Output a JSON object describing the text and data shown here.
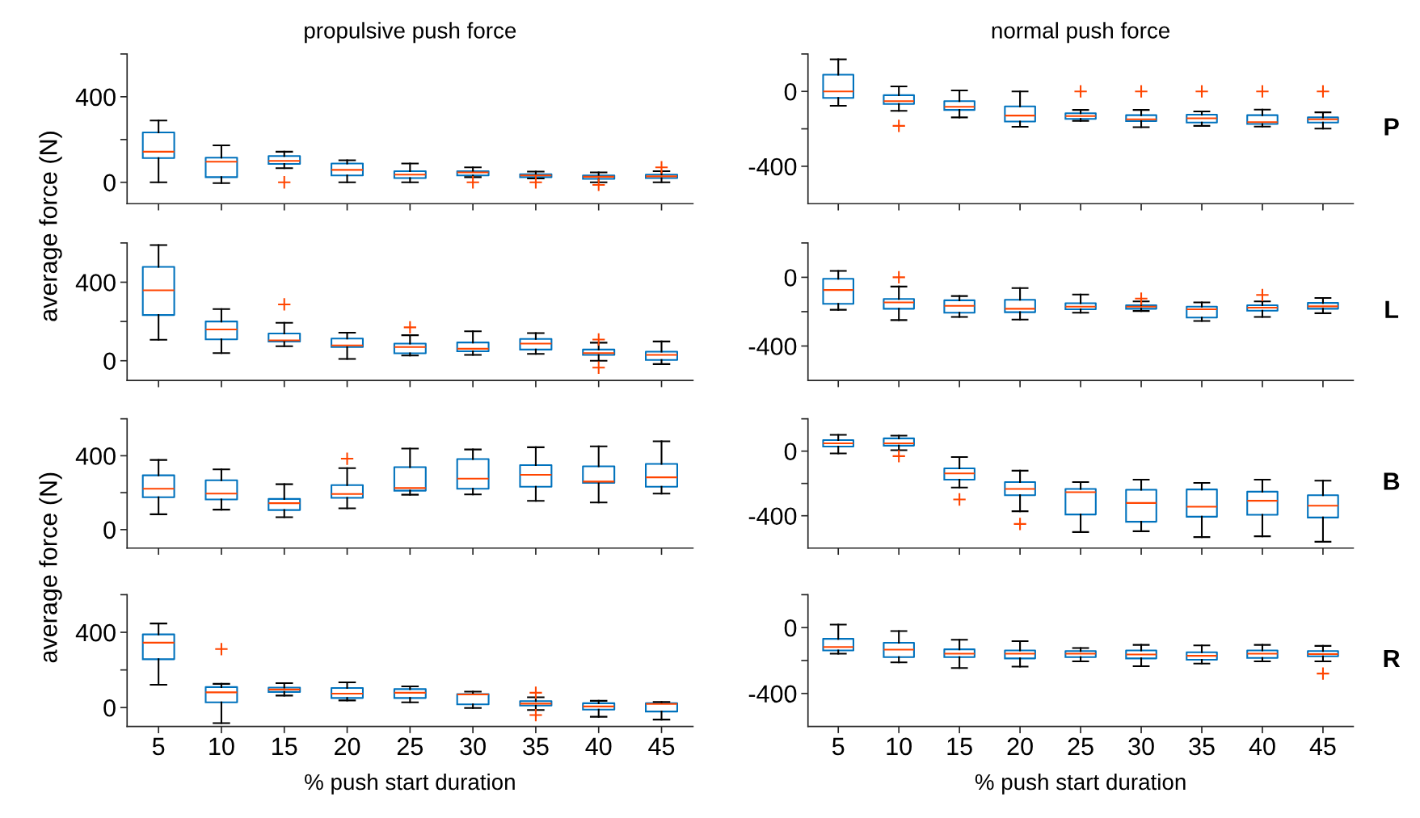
{
  "chart_data": [
    {
      "type": "box",
      "title": "propulsive push force",
      "ylabel": "average force (N)",
      "categories": [
        "5",
        "10",
        "15",
        "20",
        "25",
        "30",
        "35",
        "40",
        "45"
      ],
      "ylim": [
        -100,
        600
      ],
      "yticks": [
        0,
        {
          "value": 200,
          "label": null
        },
        400,
        {
          "value": 600,
          "label": null
        }
      ],
      "tick_labels": "y",
      "boxes": [
        {
          "low": 0,
          "q1": 113,
          "median": 143,
          "q3": 233,
          "high": 289
        },
        {
          "low": -4,
          "q1": 24,
          "median": 96,
          "q3": 115,
          "high": 173
        },
        {
          "low": 66,
          "q1": 86,
          "median": 100,
          "q3": 123,
          "high": 143,
          "outliers": [
            0
          ]
        },
        {
          "low": 0,
          "q1": 32,
          "median": 58,
          "q3": 88,
          "high": 103
        },
        {
          "low": 0,
          "q1": 20,
          "median": 36,
          "q3": 52,
          "high": 88
        },
        {
          "low": 24,
          "q1": 32,
          "median": 46,
          "q3": 52,
          "high": 70,
          "outliers": [
            0
          ]
        },
        {
          "low": 18,
          "q1": 24,
          "median": 32,
          "q3": 38,
          "high": 50,
          "outliers": [
            0
          ]
        },
        {
          "low": 0,
          "q1": 16,
          "median": 26,
          "q3": 32,
          "high": 46,
          "outliers": [
            -12
          ]
        },
        {
          "low": 0,
          "q1": 20,
          "median": 28,
          "q3": 36,
          "high": 52,
          "outliers": [
            70
          ]
        }
      ]
    },
    {
      "type": "box",
      "title": "normal push force",
      "categories": [
        "5",
        "10",
        "15",
        "20",
        "25",
        "30",
        "35",
        "40",
        "45"
      ],
      "ylim": [
        -600,
        200
      ],
      "yticks": [
        -400,
        {
          "value": -200,
          "label": null
        },
        0,
        {
          "value": 200,
          "label": null
        }
      ],
      "tick_labels": "y",
      "annotations": [
        "P"
      ],
      "boxes": [
        {
          "low": -77,
          "q1": -35,
          "median": 0,
          "q3": 89,
          "high": 171
        },
        {
          "low": -104,
          "q1": -67,
          "median": -52,
          "q3": -20,
          "high": 27,
          "outliers": [
            -184
          ]
        },
        {
          "low": -139,
          "q1": -99,
          "median": -82,
          "q3": -52,
          "high": 5
        },
        {
          "low": -189,
          "q1": -161,
          "median": -129,
          "q3": -80,
          "high": 0
        },
        {
          "low": -157,
          "q1": -147,
          "median": -132,
          "q3": -117,
          "high": -99,
          "outliers": [
            0
          ]
        },
        {
          "low": -191,
          "q1": -159,
          "median": -149,
          "q3": -127,
          "high": -99,
          "outliers": [
            0
          ]
        },
        {
          "low": -184,
          "q1": -166,
          "median": -144,
          "q3": -124,
          "high": -107,
          "outliers": [
            0
          ]
        },
        {
          "low": -188,
          "q1": -174,
          "median": -164,
          "q3": -127,
          "high": -97,
          "outliers": [
            0
          ]
        },
        {
          "low": -199,
          "q1": -166,
          "median": -149,
          "q3": -139,
          "high": -112,
          "outliers": [
            0
          ]
        }
      ]
    },
    {
      "type": "box",
      "categories": [
        "5",
        "10",
        "15",
        "20",
        "25",
        "30",
        "35",
        "40",
        "45"
      ],
      "ylim": [
        -100,
        600
      ],
      "yticks": [
        0,
        {
          "value": 200,
          "label": null
        },
        400,
        {
          "value": 600,
          "label": null
        }
      ],
      "tick_labels": "y",
      "boxes": [
        {
          "low": 107,
          "q1": 233,
          "median": 359,
          "q3": 478,
          "high": 589
        },
        {
          "low": 39,
          "q1": 109,
          "median": 159,
          "q3": 200,
          "high": 263
        },
        {
          "low": 74,
          "q1": 98,
          "median": 104,
          "q3": 139,
          "high": 193,
          "outliers": [
            287
          ]
        },
        {
          "low": 9,
          "q1": 70,
          "median": 78,
          "q3": 113,
          "high": 143
        },
        {
          "low": 27,
          "q1": 38,
          "median": 70,
          "q3": 87,
          "high": 130,
          "outliers": [
            170
          ]
        },
        {
          "low": 30,
          "q1": 48,
          "median": 61,
          "q3": 93,
          "high": 150
        },
        {
          "low": 35,
          "q1": 57,
          "median": 87,
          "q3": 111,
          "high": 141
        },
        {
          "low": 0,
          "q1": 30,
          "median": 39,
          "q3": 57,
          "high": 92,
          "outliers": [
            108,
            -35
          ]
        },
        {
          "low": -17,
          "q1": 4,
          "median": 30,
          "q3": 46,
          "high": 98
        }
      ]
    },
    {
      "type": "box",
      "categories": [
        "5",
        "10",
        "15",
        "20",
        "25",
        "30",
        "35",
        "40",
        "45"
      ],
      "ylim": [
        -600,
        200
      ],
      "yticks": [
        -400,
        {
          "value": -200,
          "label": null
        },
        0,
        {
          "value": 200,
          "label": null
        }
      ],
      "tick_labels": "y",
      "annotations": [
        "L"
      ],
      "boxes": [
        {
          "low": -189,
          "q1": -154,
          "median": -74,
          "q3": -9,
          "high": 37
        },
        {
          "low": -249,
          "q1": -183,
          "median": -146,
          "q3": -126,
          "high": -54,
          "outliers": [
            0
          ]
        },
        {
          "low": -231,
          "q1": -206,
          "median": -166,
          "q3": -134,
          "high": -109
        },
        {
          "low": -246,
          "q1": -203,
          "median": -183,
          "q3": -131,
          "high": -63
        },
        {
          "low": -206,
          "q1": -186,
          "median": -171,
          "q3": -151,
          "high": -100
        },
        {
          "low": -196,
          "q1": -183,
          "median": -171,
          "q3": -163,
          "high": -140,
          "outliers": [
            -124
          ]
        },
        {
          "low": -254,
          "q1": -234,
          "median": -186,
          "q3": -171,
          "high": -146
        },
        {
          "low": -231,
          "q1": -194,
          "median": -177,
          "q3": -163,
          "high": -140,
          "outliers": [
            -103
          ]
        },
        {
          "low": -209,
          "q1": -183,
          "median": -169,
          "q3": -149,
          "high": -120
        }
      ]
    },
    {
      "type": "box",
      "ylabel": "average force (N)",
      "categories": [
        "5",
        "10",
        "15",
        "20",
        "25",
        "30",
        "35",
        "40",
        "45"
      ],
      "ylim": [
        -100,
        600
      ],
      "yticks": [
        0,
        {
          "value": 200,
          "label": null
        },
        400,
        {
          "value": 600,
          "label": null
        }
      ],
      "tick_labels": "y",
      "boxes": [
        {
          "low": 83,
          "q1": 175,
          "median": 221,
          "q3": 294,
          "high": 377
        },
        {
          "low": 108,
          "q1": 163,
          "median": 195,
          "q3": 267,
          "high": 326
        },
        {
          "low": 67,
          "q1": 106,
          "median": 143,
          "q3": 166,
          "high": 246
        },
        {
          "low": 115,
          "q1": 172,
          "median": 193,
          "q3": 241,
          "high": 333,
          "outliers": [
            384
          ]
        },
        {
          "low": 189,
          "q1": 211,
          "median": 225,
          "q3": 338,
          "high": 439
        },
        {
          "low": 191,
          "q1": 221,
          "median": 276,
          "q3": 382,
          "high": 434
        },
        {
          "low": 156,
          "q1": 232,
          "median": 297,
          "q3": 349,
          "high": 446
        },
        {
          "low": 147,
          "q1": 253,
          "median": 260,
          "q3": 343,
          "high": 451
        },
        {
          "low": 195,
          "q1": 232,
          "median": 283,
          "q3": 356,
          "high": 478
        }
      ]
    },
    {
      "type": "box",
      "categories": [
        "5",
        "10",
        "15",
        "20",
        "25",
        "30",
        "35",
        "40",
        "45"
      ],
      "ylim": [
        -600,
        200
      ],
      "yticks": [
        -400,
        {
          "value": -200,
          "label": null
        },
        0,
        {
          "value": 200,
          "label": null
        }
      ],
      "tick_labels": "y",
      "annotations": [
        "B"
      ],
      "boxes": [
        {
          "low": -14,
          "q1": 28,
          "median": 48,
          "q3": 68,
          "high": 101
        },
        {
          "low": 6,
          "q1": 34,
          "median": 48,
          "q3": 79,
          "high": 96,
          "outliers": [
            -31
          ]
        },
        {
          "low": -225,
          "q1": -177,
          "median": -138,
          "q3": -107,
          "high": -37,
          "outliers": [
            -299
          ]
        },
        {
          "low": -372,
          "q1": -273,
          "median": -234,
          "q3": -192,
          "high": -121,
          "outliers": [
            -451
          ]
        },
        {
          "low": -501,
          "q1": -392,
          "median": -254,
          "q3": -234,
          "high": -192
        },
        {
          "low": -496,
          "q1": -437,
          "median": -321,
          "q3": -239,
          "high": -177
        },
        {
          "low": -532,
          "q1": -406,
          "median": -344,
          "q3": -237,
          "high": -197
        },
        {
          "low": -527,
          "q1": -394,
          "median": -307,
          "q3": -251,
          "high": -177
        },
        {
          "low": -561,
          "q1": -411,
          "median": -338,
          "q3": -273,
          "high": -183
        }
      ]
    },
    {
      "type": "box",
      "xlabel": "% push start duration",
      "categories": [
        "5",
        "10",
        "15",
        "20",
        "25",
        "30",
        "35",
        "40",
        "45"
      ],
      "ylim": [
        -100,
        600
      ],
      "yticks": [
        0,
        {
          "value": 200,
          "label": null
        },
        400,
        {
          "value": 600,
          "label": null
        }
      ],
      "boxes": [
        {
          "low": 121,
          "q1": 257,
          "median": 345,
          "q3": 389,
          "high": 447
        },
        {
          "low": -83,
          "q1": 28,
          "median": 81,
          "q3": 109,
          "high": 126,
          "outliers": [
            311
          ]
        },
        {
          "low": 64,
          "q1": 83,
          "median": 96,
          "q3": 106,
          "high": 130
        },
        {
          "low": 38,
          "q1": 51,
          "median": 74,
          "q3": 104,
          "high": 134
        },
        {
          "low": 28,
          "q1": 51,
          "median": 79,
          "q3": 98,
          "high": 113
        },
        {
          "low": -2,
          "q1": 17,
          "median": 70,
          "q3": 72,
          "high": 85
        },
        {
          "low": -13,
          "q1": 11,
          "median": 21,
          "q3": 34,
          "high": 55,
          "outliers": [
            79,
            -40
          ]
        },
        {
          "low": -49,
          "q1": -11,
          "median": 6,
          "q3": 23,
          "high": 36
        },
        {
          "low": -64,
          "q1": -21,
          "median": 19,
          "q3": 23,
          "high": 30
        }
      ]
    },
    {
      "type": "box",
      "xlabel": "% push start duration",
      "categories": [
        "5",
        "10",
        "15",
        "20",
        "25",
        "30",
        "35",
        "40",
        "45"
      ],
      "ylim": [
        -600,
        200
      ],
      "yticks": [
        -400,
        {
          "value": -200,
          "label": null
        },
        0,
        {
          "value": 200,
          "label": null
        }
      ],
      "annotations": [
        "R"
      ],
      "boxes": [
        {
          "low": -158,
          "q1": -139,
          "median": -118,
          "q3": -68,
          "high": 18
        },
        {
          "low": -211,
          "q1": -179,
          "median": -134,
          "q3": -92,
          "high": -21
        },
        {
          "low": -245,
          "q1": -179,
          "median": -158,
          "q3": -132,
          "high": -74
        },
        {
          "low": -237,
          "q1": -187,
          "median": -158,
          "q3": -139,
          "high": -82
        },
        {
          "low": -205,
          "q1": -179,
          "median": -158,
          "q3": -142,
          "high": -124
        },
        {
          "low": -234,
          "q1": -187,
          "median": -163,
          "q3": -139,
          "high": -105
        },
        {
          "low": -218,
          "q1": -195,
          "median": -171,
          "q3": -150,
          "high": -108
        },
        {
          "low": -205,
          "q1": -184,
          "median": -158,
          "q3": -139,
          "high": -105
        },
        {
          "low": -205,
          "q1": -174,
          "median": -161,
          "q3": -142,
          "high": -111,
          "outliers": [
            -279
          ]
        }
      ]
    }
  ]
}
